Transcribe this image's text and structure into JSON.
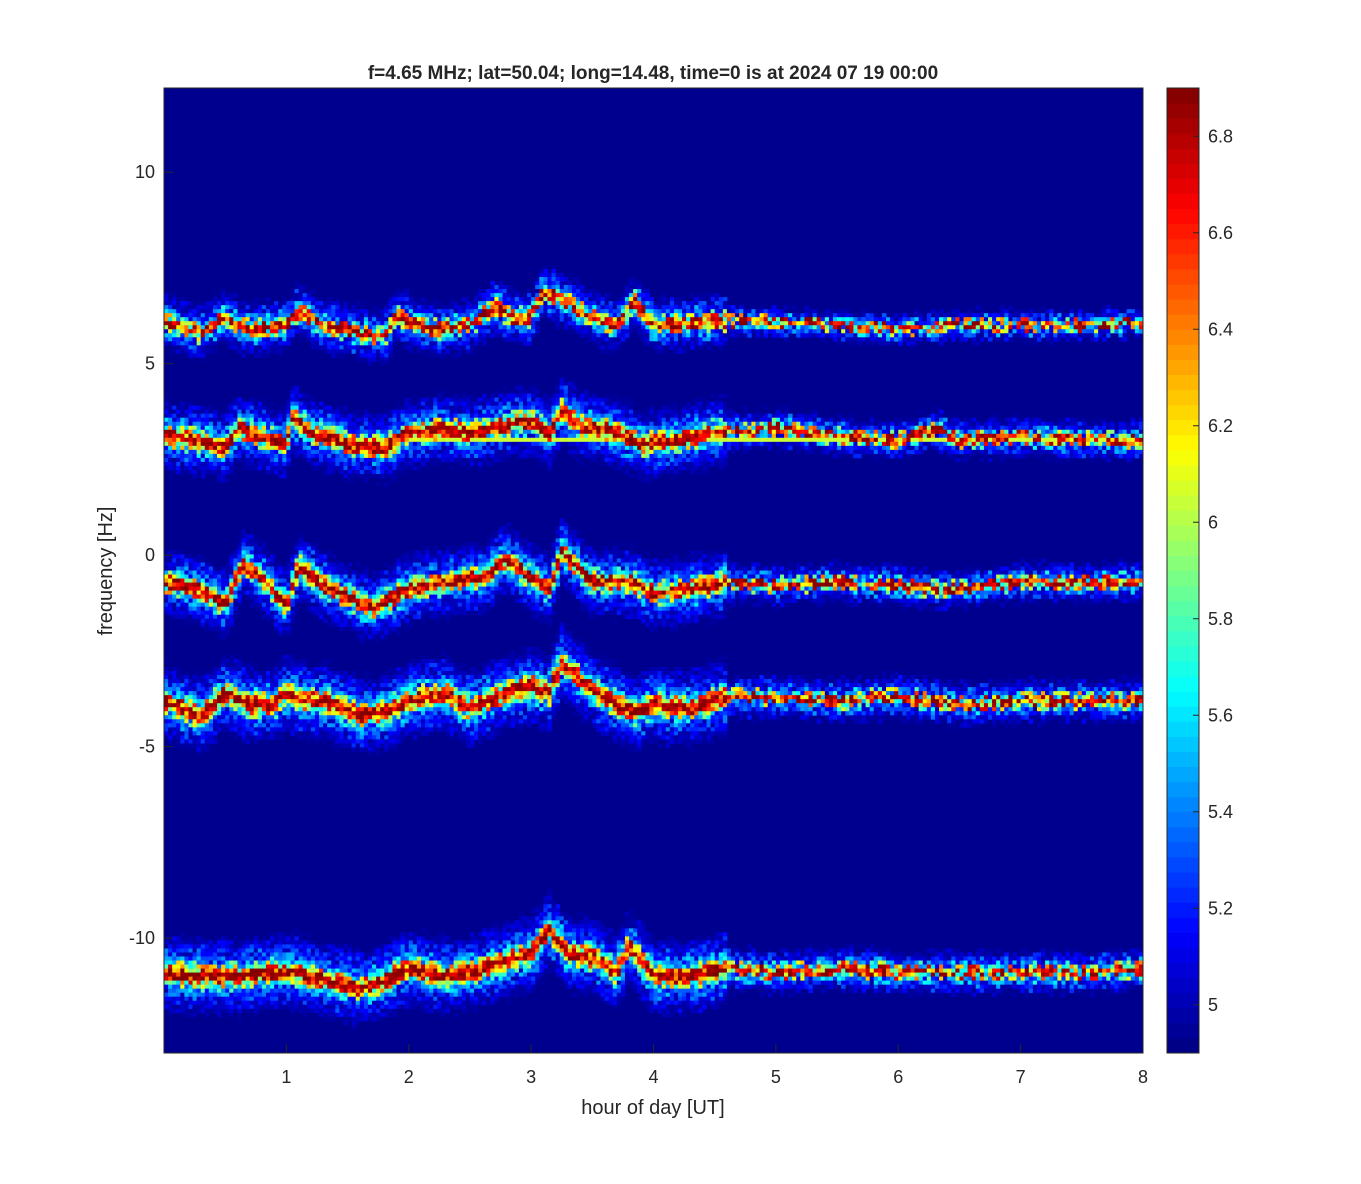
{
  "chart_data": {
    "type": "heatmap",
    "title": "f=4.65 MHz;  lat=50.04; long=14.48, time=0 is at 2024 07 19 00:00",
    "xlabel": "hour of day [UT]",
    "ylabel": "frequency [Hz]",
    "xlim": [
      0,
      8
    ],
    "ylim": [
      -13,
      12.2
    ],
    "xticks": [
      1,
      2,
      3,
      4,
      5,
      6,
      7,
      8
    ],
    "xtick_labels": [
      "1",
      "2",
      "3",
      "4",
      "5",
      "6",
      "7",
      "8"
    ],
    "yticks": [
      10,
      5,
      0,
      -5,
      -10
    ],
    "ytick_labels": [
      "10",
      "5",
      "0",
      "-5",
      "-10"
    ],
    "colormap": "jet",
    "colorbar": {
      "range": [
        4.9,
        6.9
      ],
      "ticks": [
        5,
        5.2,
        5.4,
        5.6,
        5.8,
        6,
        6.2,
        6.4,
        6.6,
        6.8
      ],
      "tick_labels": [
        "5",
        "5.2",
        "5.4",
        "5.6",
        "5.8",
        "6",
        "6.2",
        "6.4",
        "6.6",
        "6.8"
      ]
    },
    "background_value": 4.9,
    "constant_lines": [
      {
        "y": 3.0,
        "value": 6.05
      }
    ],
    "traces": [
      {
        "spread": 0.7,
        "peak": 6.9,
        "points": [
          [
            0,
            6.1
          ],
          [
            0.3,
            5.8
          ],
          [
            0.5,
            6.2
          ],
          [
            0.7,
            5.9
          ],
          [
            1,
            6.0
          ],
          [
            1.1,
            6.4
          ],
          [
            1.3,
            6.0
          ],
          [
            1.6,
            5.8
          ],
          [
            1.8,
            5.7
          ],
          [
            1.9,
            6.3
          ],
          [
            2.0,
            6.1
          ],
          [
            2.2,
            5.9
          ],
          [
            2.5,
            6.0
          ],
          [
            2.7,
            6.5
          ],
          [
            2.85,
            6.2
          ],
          [
            3.0,
            6.2
          ],
          [
            3.1,
            6.9
          ],
          [
            3.3,
            6.6
          ],
          [
            3.5,
            6.2
          ],
          [
            3.7,
            6.0
          ],
          [
            3.85,
            6.6
          ],
          [
            4.0,
            6.0
          ],
          [
            4.5,
            6.1
          ],
          [
            5.0,
            6.1
          ],
          [
            5.5,
            6.0
          ],
          [
            6.0,
            5.9
          ],
          [
            6.5,
            6.0
          ],
          [
            7.0,
            6.0
          ],
          [
            7.5,
            6.0
          ],
          [
            8.0,
            6.1
          ]
        ]
      },
      {
        "spread": 0.9,
        "peak": 6.9,
        "points": [
          [
            0,
            3.1
          ],
          [
            0.3,
            3.0
          ],
          [
            0.5,
            2.8
          ],
          [
            0.6,
            3.3
          ],
          [
            0.8,
            3.1
          ],
          [
            1.0,
            2.9
          ],
          [
            1.05,
            3.6
          ],
          [
            1.2,
            3.2
          ],
          [
            1.5,
            2.9
          ],
          [
            1.8,
            2.8
          ],
          [
            2.0,
            3.2
          ],
          [
            2.3,
            3.3
          ],
          [
            2.5,
            3.2
          ],
          [
            2.8,
            3.4
          ],
          [
            3.0,
            3.5
          ],
          [
            3.15,
            3.2
          ],
          [
            3.25,
            3.8
          ],
          [
            3.4,
            3.4
          ],
          [
            3.7,
            3.2
          ],
          [
            3.9,
            2.9
          ],
          [
            4.2,
            3.0
          ],
          [
            4.5,
            3.2
          ],
          [
            5.0,
            3.3
          ],
          [
            5.5,
            3.1
          ],
          [
            6.0,
            3.0
          ],
          [
            6.3,
            3.3
          ],
          [
            6.5,
            3.0
          ],
          [
            7.0,
            3.1
          ],
          [
            7.5,
            3.0
          ],
          [
            8.0,
            3.0
          ]
        ]
      },
      {
        "spread": 0.9,
        "peak": 6.9,
        "points": [
          [
            0,
            -0.7
          ],
          [
            0.3,
            -0.9
          ],
          [
            0.5,
            -1.3
          ],
          [
            0.65,
            -0.2
          ],
          [
            0.8,
            -0.6
          ],
          [
            1.0,
            -1.3
          ],
          [
            1.1,
            -0.3
          ],
          [
            1.3,
            -0.8
          ],
          [
            1.5,
            -1.1
          ],
          [
            1.7,
            -1.4
          ],
          [
            2.0,
            -0.9
          ],
          [
            2.3,
            -0.7
          ],
          [
            2.6,
            -0.6
          ],
          [
            2.8,
            -0.1
          ],
          [
            3.0,
            -0.6
          ],
          [
            3.15,
            -0.9
          ],
          [
            3.25,
            0.1
          ],
          [
            3.5,
            -0.7
          ],
          [
            3.8,
            -0.7
          ],
          [
            4.0,
            -1.0
          ],
          [
            4.3,
            -0.9
          ],
          [
            4.6,
            -0.7
          ],
          [
            5.0,
            -0.8
          ],
          [
            5.5,
            -0.7
          ],
          [
            6.0,
            -0.8
          ],
          [
            6.4,
            -0.9
          ],
          [
            7.0,
            -0.7
          ],
          [
            7.5,
            -0.7
          ],
          [
            8.0,
            -0.7
          ]
        ]
      },
      {
        "spread": 1.0,
        "peak": 6.9,
        "points": [
          [
            0,
            -3.8
          ],
          [
            0.3,
            -4.2
          ],
          [
            0.5,
            -3.6
          ],
          [
            0.7,
            -3.9
          ],
          [
            0.9,
            -3.9
          ],
          [
            1.0,
            -3.6
          ],
          [
            1.1,
            -3.8
          ],
          [
            1.3,
            -3.8
          ],
          [
            1.6,
            -4.2
          ],
          [
            1.8,
            -4.1
          ],
          [
            2.0,
            -3.8
          ],
          [
            2.3,
            -3.6
          ],
          [
            2.5,
            -4.0
          ],
          [
            2.8,
            -3.6
          ],
          [
            3.0,
            -3.4
          ],
          [
            3.15,
            -3.6
          ],
          [
            3.25,
            -2.8
          ],
          [
            3.5,
            -3.5
          ],
          [
            3.7,
            -3.9
          ],
          [
            3.85,
            -4.1
          ],
          [
            4.0,
            -3.9
          ],
          [
            4.3,
            -4.0
          ],
          [
            4.6,
            -3.7
          ],
          [
            5.0,
            -3.7
          ],
          [
            5.5,
            -3.8
          ],
          [
            6.0,
            -3.7
          ],
          [
            6.5,
            -3.9
          ],
          [
            7.0,
            -3.8
          ],
          [
            7.5,
            -3.8
          ],
          [
            8.0,
            -3.8
          ]
        ]
      },
      {
        "spread": 1.0,
        "peak": 6.9,
        "points": [
          [
            0,
            -10.9
          ],
          [
            0.3,
            -11.0
          ],
          [
            0.6,
            -11.0
          ],
          [
            0.9,
            -10.9
          ],
          [
            1.1,
            -10.9
          ],
          [
            1.3,
            -11.1
          ],
          [
            1.6,
            -11.3
          ],
          [
            1.8,
            -11.1
          ],
          [
            2.0,
            -10.8
          ],
          [
            2.3,
            -11.0
          ],
          [
            2.5,
            -10.9
          ],
          [
            2.8,
            -10.6
          ],
          [
            3.0,
            -10.4
          ],
          [
            3.15,
            -9.8
          ],
          [
            3.3,
            -10.4
          ],
          [
            3.5,
            -10.5
          ],
          [
            3.7,
            -10.9
          ],
          [
            3.8,
            -10.2
          ],
          [
            4.0,
            -11.0
          ],
          [
            4.3,
            -11.0
          ],
          [
            4.6,
            -10.8
          ],
          [
            5.0,
            -10.9
          ],
          [
            5.5,
            -10.8
          ],
          [
            6.0,
            -10.9
          ],
          [
            6.5,
            -10.9
          ],
          [
            7.0,
            -10.9
          ],
          [
            7.5,
            -10.9
          ],
          [
            8.0,
            -10.8
          ]
        ]
      }
    ]
  }
}
